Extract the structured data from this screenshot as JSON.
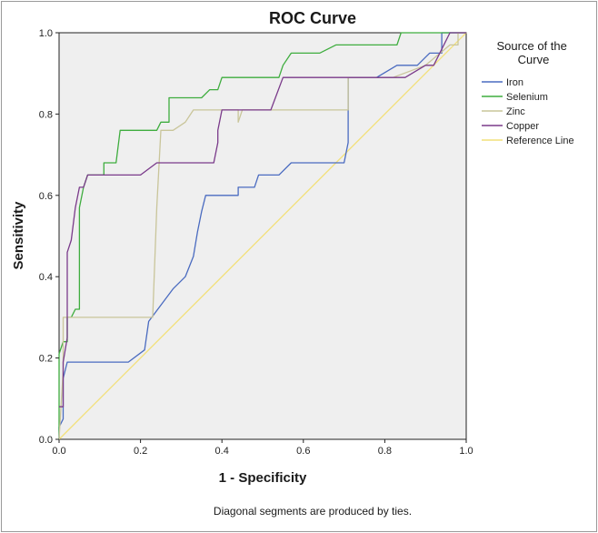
{
  "chart_data": {
    "type": "line",
    "title": "ROC Curve",
    "xlabel": "1 - Specificity",
    "ylabel": "Sensitivity",
    "xlim": [
      0,
      1
    ],
    "ylim": [
      0,
      1
    ],
    "xticks": [
      "0.0",
      "0.2",
      "0.4",
      "0.6",
      "0.8",
      "1.0"
    ],
    "yticks": [
      "0.0",
      "0.2",
      "0.4",
      "0.6",
      "0.8",
      "1.0"
    ],
    "grid": false,
    "legend_title": "Source of the Curve",
    "legend_position": "right",
    "footnote": "Diagonal segments are produced by ties.",
    "series": [
      {
        "name": "Iron",
        "color": "#4a6bc0",
        "points": [
          [
            0,
            0
          ],
          [
            0,
            0.03
          ],
          [
            0.01,
            0.05
          ],
          [
            0.01,
            0.15
          ],
          [
            0.02,
            0.19
          ],
          [
            0.09,
            0.19
          ],
          [
            0.17,
            0.19
          ],
          [
            0.21,
            0.22
          ],
          [
            0.22,
            0.29
          ],
          [
            0.25,
            0.33
          ],
          [
            0.28,
            0.37
          ],
          [
            0.31,
            0.4
          ],
          [
            0.33,
            0.45
          ],
          [
            0.34,
            0.51
          ],
          [
            0.35,
            0.56
          ],
          [
            0.36,
            0.6
          ],
          [
            0.4,
            0.6
          ],
          [
            0.44,
            0.6
          ],
          [
            0.44,
            0.62
          ],
          [
            0.48,
            0.62
          ],
          [
            0.49,
            0.65
          ],
          [
            0.51,
            0.65
          ],
          [
            0.54,
            0.65
          ],
          [
            0.57,
            0.68
          ],
          [
            0.7,
            0.68
          ],
          [
            0.71,
            0.73
          ],
          [
            0.71,
            0.81
          ],
          [
            0.71,
            0.89
          ],
          [
            0.78,
            0.89
          ],
          [
            0.83,
            0.92
          ],
          [
            0.88,
            0.92
          ],
          [
            0.91,
            0.95
          ],
          [
            0.94,
            0.95
          ],
          [
            0.94,
            1
          ],
          [
            1,
            1
          ]
        ]
      },
      {
        "name": "Selenium",
        "color": "#3fad3f",
        "points": [
          [
            0,
            0
          ],
          [
            0,
            0.21
          ],
          [
            0.01,
            0.24
          ],
          [
            0.02,
            0.24
          ],
          [
            0.02,
            0.3
          ],
          [
            0.03,
            0.3
          ],
          [
            0.04,
            0.32
          ],
          [
            0.05,
            0.32
          ],
          [
            0.05,
            0.49
          ],
          [
            0.05,
            0.57
          ],
          [
            0.06,
            0.62
          ],
          [
            0.07,
            0.65
          ],
          [
            0.11,
            0.65
          ],
          [
            0.11,
            0.68
          ],
          [
            0.14,
            0.68
          ],
          [
            0.15,
            0.76
          ],
          [
            0.24,
            0.76
          ],
          [
            0.25,
            0.78
          ],
          [
            0.27,
            0.78
          ],
          [
            0.27,
            0.84
          ],
          [
            0.35,
            0.84
          ],
          [
            0.37,
            0.86
          ],
          [
            0.39,
            0.86
          ],
          [
            0.4,
            0.89
          ],
          [
            0.43,
            0.89
          ],
          [
            0.47,
            0.89
          ],
          [
            0.48,
            0.89
          ],
          [
            0.54,
            0.89
          ],
          [
            0.55,
            0.92
          ],
          [
            0.57,
            0.95
          ],
          [
            0.64,
            0.95
          ],
          [
            0.68,
            0.97
          ],
          [
            0.83,
            0.97
          ],
          [
            0.84,
            1
          ],
          [
            1,
            1
          ]
        ]
      },
      {
        "name": "Zinc",
        "color": "#c9c59a",
        "points": [
          [
            0,
            0
          ],
          [
            0.01,
            0.17
          ],
          [
            0.01,
            0.3
          ],
          [
            0.02,
            0.3
          ],
          [
            0.09,
            0.3
          ],
          [
            0.22,
            0.3
          ],
          [
            0.23,
            0.3
          ],
          [
            0.24,
            0.57
          ],
          [
            0.25,
            0.76
          ],
          [
            0.28,
            0.76
          ],
          [
            0.31,
            0.78
          ],
          [
            0.33,
            0.81
          ],
          [
            0.44,
            0.81
          ],
          [
            0.44,
            0.78
          ],
          [
            0.45,
            0.81
          ],
          [
            0.54,
            0.81
          ],
          [
            0.71,
            0.81
          ],
          [
            0.71,
            0.89
          ],
          [
            0.82,
            0.89
          ],
          [
            0.9,
            0.92
          ],
          [
            0.96,
            0.97
          ],
          [
            0.98,
            0.97
          ],
          [
            0.98,
            1
          ],
          [
            1,
            1
          ]
        ]
      },
      {
        "name": "Copper",
        "color": "#7a3a8a",
        "points": [
          [
            0,
            0.08
          ],
          [
            0.01,
            0.08
          ],
          [
            0.01,
            0.19
          ],
          [
            0.02,
            0.25
          ],
          [
            0.02,
            0.46
          ],
          [
            0.03,
            0.49
          ],
          [
            0.04,
            0.57
          ],
          [
            0.05,
            0.62
          ],
          [
            0.06,
            0.62
          ],
          [
            0.07,
            0.65
          ],
          [
            0.08,
            0.65
          ],
          [
            0.2,
            0.65
          ],
          [
            0.24,
            0.68
          ],
          [
            0.28,
            0.68
          ],
          [
            0.38,
            0.68
          ],
          [
            0.39,
            0.73
          ],
          [
            0.39,
            0.76
          ],
          [
            0.4,
            0.81
          ],
          [
            0.44,
            0.81
          ],
          [
            0.52,
            0.81
          ],
          [
            0.55,
            0.89
          ],
          [
            0.71,
            0.89
          ],
          [
            0.78,
            0.89
          ],
          [
            0.85,
            0.89
          ],
          [
            0.9,
            0.92
          ],
          [
            0.92,
            0.92
          ],
          [
            0.96,
            1
          ],
          [
            1,
            1
          ]
        ]
      },
      {
        "name": "Reference Line",
        "color": "#f2e07a",
        "points": [
          [
            0,
            0
          ],
          [
            1,
            1
          ]
        ]
      }
    ]
  }
}
